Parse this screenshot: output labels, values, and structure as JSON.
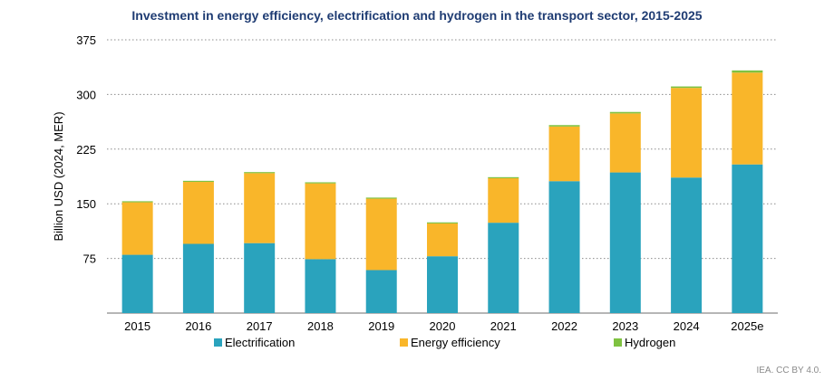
{
  "chart_data": {
    "type": "bar",
    "stacked": true,
    "title": "Investment in energy efficiency, electrification and hydrogen in the transport sector, 2015-2025",
    "ylabel": "Billion USD (2024, MER)",
    "xlabel": "",
    "categories": [
      "2015",
      "2016",
      "2017",
      "2018",
      "2019",
      "2020",
      "2021",
      "2022",
      "2023",
      "2024",
      "2025e"
    ],
    "ylim": [
      0,
      375
    ],
    "yticks": [
      "75",
      "150",
      "225",
      "300",
      "375"
    ],
    "grid": true,
    "legend_position": "bottom",
    "series": [
      {
        "name": "Electrification",
        "color": "#2aa3bd",
        "values": [
          80,
          95,
          96,
          74,
          59,
          78,
          124,
          181,
          193,
          186,
          204
        ]
      },
      {
        "name": "Energy efficiency",
        "color": "#f9b62a",
        "values": [
          72,
          85,
          96,
          104,
          98,
          45,
          61,
          75,
          81,
          123,
          126
        ]
      },
      {
        "name": "Hydrogen",
        "color": "#7fc241",
        "values": [
          0.5,
          0.5,
          0.5,
          0.5,
          1,
          1,
          1.5,
          2,
          2,
          2,
          3
        ]
      }
    ]
  },
  "credit": "IEA. CC BY 4.0."
}
